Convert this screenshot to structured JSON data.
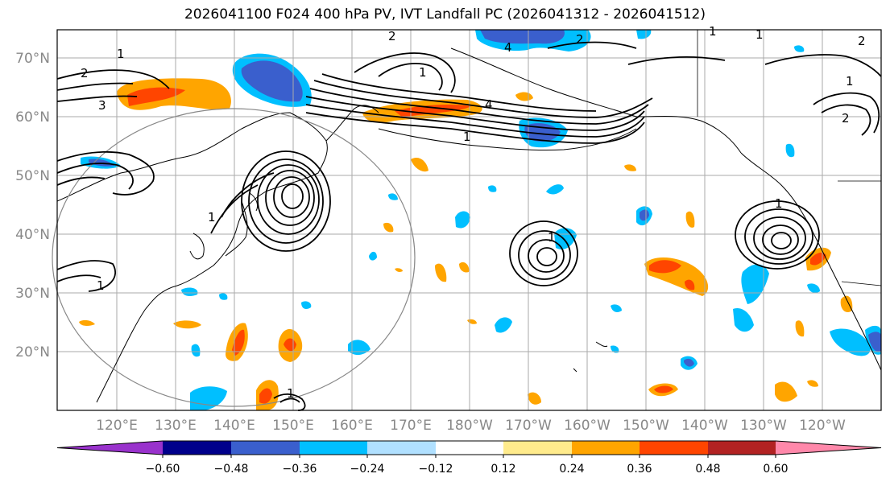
{
  "title": "2026041100 F024 400 hPa PV, IVT Landfall PC (2026041312 - 2026041512)",
  "map": {
    "lat_labels": [
      "70°N",
      "60°N",
      "50°N",
      "40°N",
      "30°N",
      "20°N"
    ],
    "lon_labels": [
      "120°E",
      "130°E",
      "140°E",
      "150°E",
      "160°E",
      "170°E",
      "180°W",
      "170°W",
      "160°W",
      "150°W",
      "140°W",
      "130°W",
      "120°W"
    ],
    "contour_labels": [
      "1",
      "2",
      "3",
      "4",
      "2",
      "1",
      "4",
      "2",
      "1",
      "1",
      "1",
      "2",
      "1",
      "2",
      "1",
      "1",
      "1",
      "1",
      "1"
    ]
  },
  "colorbar": {
    "tick_labels": [
      "−0.60",
      "−0.48",
      "−0.36",
      "−0.24",
      "−0.12",
      "0.12",
      "0.24",
      "0.36",
      "0.48",
      "0.60"
    ],
    "colors": [
      "#9932cc",
      "#00008b",
      "#3a5fcd",
      "#00bfff",
      "#b0e0ff",
      "#ffffff",
      "#ffeb8c",
      "#ffa500",
      "#ff4500",
      "#b22222",
      "#ff88aa"
    ]
  }
}
